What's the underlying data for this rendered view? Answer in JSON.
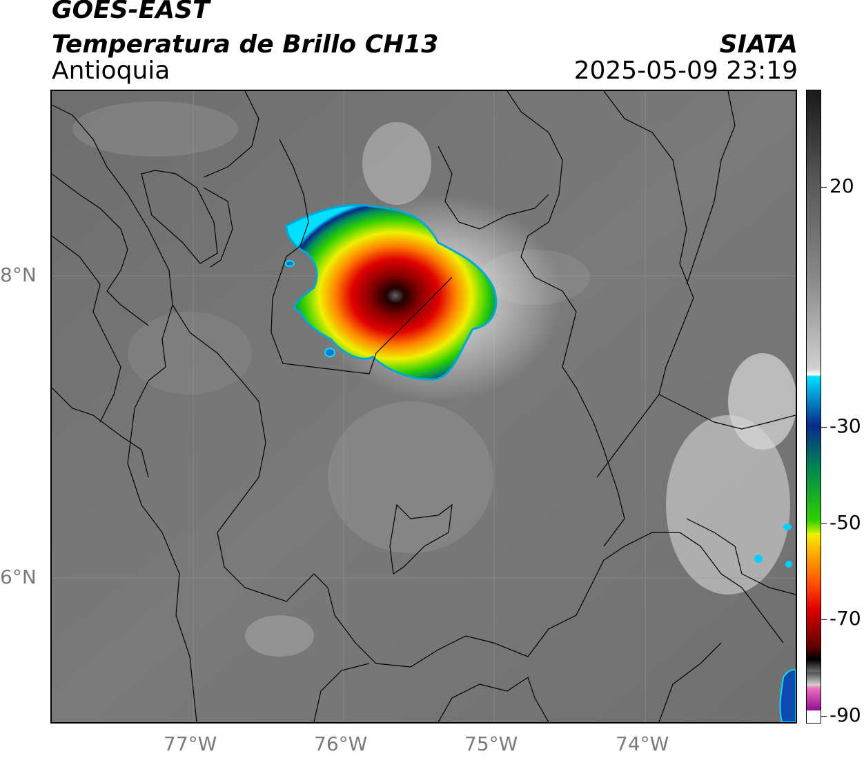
{
  "header": {
    "satellite": "GOES-EAST",
    "product": "Temperatura de Brillo CH13",
    "region": "Antioquia",
    "org": "SIATA",
    "datetime": "2025-05-09 23:19"
  },
  "map": {
    "lon_labels": [
      "77°W",
      "76°W",
      "75°W",
      "74°W"
    ],
    "lat_labels": [
      "8°N",
      "6°N"
    ],
    "extent": {
      "lon": [
        -77.95,
        -73.0
      ],
      "lat": [
        5.0,
        9.2
      ]
    },
    "features": [
      "department-borders",
      "coastline",
      "cold-cloud-top-convective-cell"
    ]
  },
  "colorbar": {
    "units_hint": "°C",
    "tick_labels": [
      "20",
      "-30",
      "-50",
      "-70",
      "-90"
    ],
    "colors": {
      "warm_gray_dark": "#3a3a3a",
      "warm_gray_light": "#ffffff",
      "cyan": "#00e0ff",
      "blue": "#0a2a8a",
      "green": "#00c000",
      "yellow": "#f0f000",
      "orange": "#ff8000",
      "red": "#e00000",
      "darkred": "#600000",
      "black": "#000000",
      "magenta": "#d040c0"
    }
  }
}
